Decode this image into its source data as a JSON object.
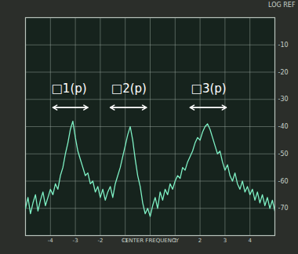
{
  "chart_data": {
    "type": "line",
    "x": [
      -5,
      -4.9,
      -4.8,
      -4.7,
      -4.6,
      -4.5,
      -4.4,
      -4.3,
      -4.2,
      -4.1,
      -4,
      -3.9,
      -3.8,
      -3.7,
      -3.6,
      -3.5,
      -3.4,
      -3.3,
      -3.2,
      -3.1,
      -3,
      -2.9,
      -2.8,
      -2.7,
      -2.6,
      -2.5,
      -2.4,
      -2.3,
      -2.2,
      -2.1,
      -2,
      -1.9,
      -1.8,
      -1.7,
      -1.6,
      -1.5,
      -1.4,
      -1.3,
      -1.2,
      -1.1,
      -1,
      -0.9,
      -0.8,
      -0.7,
      -0.6,
      -0.5,
      -0.4,
      -0.3,
      -0.2,
      -0.1,
      0,
      0.1,
      0.2,
      0.3,
      0.4,
      0.5,
      0.6,
      0.7,
      0.8,
      0.9,
      1,
      1.1,
      1.2,
      1.3,
      1.4,
      1.5,
      1.6,
      1.7,
      1.8,
      1.9,
      2,
      2.1,
      2.2,
      2.3,
      2.4,
      2.5,
      2.6,
      2.7,
      2.8,
      2.9,
      3,
      3.1,
      3.2,
      3.3,
      3.4,
      3.5,
      3.6,
      3.7,
      3.8,
      3.9,
      4,
      4.1,
      4.2,
      4.3,
      4.4,
      4.5,
      4.6,
      4.7,
      4.8,
      4.9,
      5
    ],
    "values": [
      -70,
      -66,
      -72,
      -68,
      -65,
      -71,
      -67,
      -64,
      -69,
      -66,
      -63,
      -65,
      -61,
      -63,
      -58,
      -55,
      -50,
      -46,
      -41,
      -38,
      -44,
      -49,
      -52,
      -55,
      -58,
      -57,
      -61,
      -60,
      -64,
      -62,
      -66,
      -63,
      -67,
      -64,
      -62,
      -66,
      -61,
      -58,
      -55,
      -51,
      -47,
      -43,
      -40,
      -45,
      -52,
      -58,
      -62,
      -68,
      -72,
      -70,
      -73,
      -69,
      -66,
      -70,
      -64,
      -67,
      -63,
      -65,
      -61,
      -63,
      -60,
      -58,
      -59,
      -55,
      -56,
      -53,
      -51,
      -49,
      -46,
      -44,
      -45,
      -42,
      -40,
      -39,
      -41,
      -44,
      -47,
      -50,
      -49,
      -53,
      -56,
      -54,
      -58,
      -60,
      -57,
      -61,
      -63,
      -60,
      -64,
      -62,
      -65,
      -63,
      -67,
      -64,
      -68,
      -65,
      -69,
      -66,
      -70,
      -67,
      -71
    ],
    "color": "#7ef0c4",
    "xlim": [
      -5,
      5
    ],
    "xticks": [
      -4,
      -3,
      -2,
      -1,
      {
        "value": 0,
        "label": "CENTER FREQUENCY"
      },
      1,
      2,
      3,
      4
    ],
    "ylim": [
      -80,
      0
    ],
    "yticks": [
      -70,
      -60,
      -50,
      -40,
      -30,
      -20,
      -10
    ],
    "y_label": "LOG REF",
    "grid": true,
    "annotations": [
      {
        "text": "□1(p)",
        "x": -3.25,
        "y": -26,
        "arrow_from": -3.9,
        "arrow_to": -2.5,
        "arrow_y": -33
      },
      {
        "text": "□2(p)",
        "x": -0.85,
        "y": -26,
        "arrow_from": -1.6,
        "arrow_to": -0.15,
        "arrow_y": -33
      },
      {
        "text": "□3(p)",
        "x": 2.35,
        "y": -26,
        "arrow_from": 1.6,
        "arrow_to": 3.05,
        "arrow_y": -33
      }
    ]
  }
}
